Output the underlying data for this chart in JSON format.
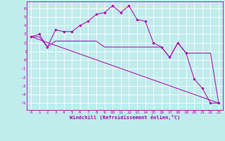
{
  "xlabel": "Windchill (Refroidissement éolien,°C)",
  "bg_color": "#c0ecec",
  "line_color": "#aa00aa",
  "grid_color": "#ffffff",
  "x_ticks": [
    0,
    1,
    2,
    3,
    4,
    5,
    6,
    7,
    8,
    9,
    10,
    11,
    12,
    13,
    14,
    15,
    16,
    17,
    18,
    19,
    20,
    21,
    22,
    23
  ],
  "y_ticks": [
    -5,
    -4,
    -3,
    -2,
    -1,
    0,
    1,
    2,
    3,
    4,
    5,
    6
  ],
  "ylim": [
    -5.8,
    6.8
  ],
  "xlim": [
    -0.5,
    23.5
  ],
  "line1_x": [
    0,
    1,
    2,
    3,
    4,
    5,
    6,
    7,
    8,
    9,
    10,
    11,
    12,
    13,
    14,
    15,
    16,
    17,
    18,
    19,
    20,
    21,
    22,
    23
  ],
  "line1_y": [
    2.7,
    3.0,
    1.5,
    3.5,
    3.3,
    3.3,
    4.0,
    4.5,
    5.3,
    5.5,
    6.3,
    5.5,
    6.3,
    4.7,
    4.5,
    2.0,
    1.5,
    0.3,
    2.0,
    0.8,
    -2.2,
    -3.3,
    -5.0,
    -5.0
  ],
  "line2_x": [
    0,
    1,
    2,
    3,
    4,
    5,
    6,
    7,
    8,
    9,
    10,
    11,
    12,
    13,
    14,
    15,
    16,
    17,
    18,
    19,
    20,
    21,
    22,
    23
  ],
  "line2_y": [
    2.7,
    2.7,
    1.5,
    2.2,
    2.2,
    2.2,
    2.2,
    2.2,
    2.2,
    1.5,
    1.5,
    1.5,
    1.5,
    1.5,
    1.5,
    1.5,
    1.5,
    0.3,
    2.0,
    0.8,
    0.8,
    0.8,
    0.8,
    -5.0
  ],
  "line3_x": [
    0,
    23
  ],
  "line3_y": [
    2.7,
    -5.0
  ]
}
